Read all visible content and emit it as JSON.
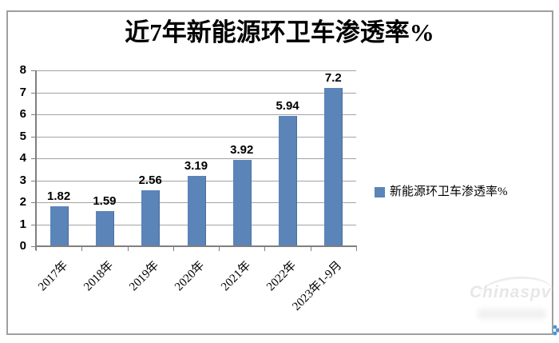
{
  "title": "近7年新能源环卫车渗透率%",
  "legend": {
    "label": "新能源环卫车渗透率%",
    "marker_color": "#5b84b8"
  },
  "watermark": {
    "text": "Chinaspv"
  },
  "colors": {
    "bar": "#5b84b8",
    "bar_edge": "#4b6da0",
    "gridline": "#a3a3a3",
    "axis": "#7f7f7f",
    "border": "#9f9f9f",
    "corner_logo_blue": "#4796d8"
  },
  "chart_data": {
    "type": "bar",
    "title": "近7年新能源环卫车渗透率%",
    "series_name": "新能源环卫车渗透率%",
    "categories": [
      "2017年",
      "2018年",
      "2019年",
      "2020年",
      "2021年",
      "2022年",
      "2023年1-9月"
    ],
    "values": [
      1.82,
      1.59,
      2.56,
      3.19,
      3.92,
      5.94,
      7.2
    ],
    "data_labels": [
      "1.82",
      "1.59",
      "2.56",
      "3.19",
      "3.92",
      "5.94",
      "7.2"
    ],
    "xlabel": "",
    "ylabel": "",
    "ylim": [
      0,
      8
    ],
    "yticks": [
      0,
      1,
      2,
      3,
      4,
      5,
      6,
      7,
      8
    ],
    "grid": true,
    "legend_position": "right"
  }
}
